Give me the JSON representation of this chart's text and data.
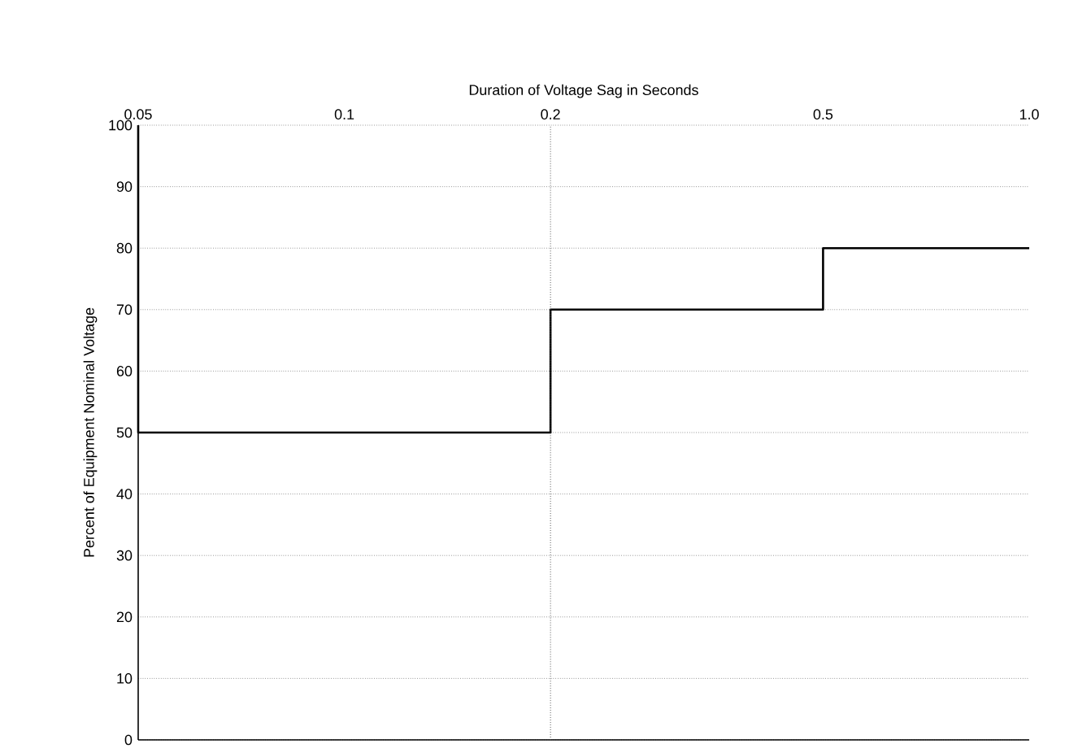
{
  "chart_data": {
    "type": "step",
    "xlabel": "Duration of Voltage Sag in Seconds",
    "ylabel": "Percent of Equipment Nominal Voltage",
    "x": [
      0.05,
      0.05,
      0.2,
      0.5,
      1.0
    ],
    "values": [
      100,
      50,
      70,
      80,
      80
    ],
    "color": "#000000",
    "log": "x",
    "xlim": [
      0.05,
      1.0
    ],
    "xticks": [
      0.05,
      0.1,
      0.2,
      0.5,
      {
        "value": 1.0,
        "label": "1.0"
      }
    ],
    "ylim": [
      0,
      100
    ],
    "yticks": [
      0,
      10,
      20,
      30,
      40,
      50,
      60,
      70,
      80,
      90,
      100
    ],
    "grid": "y",
    "ref_lines": [
      {
        "axis": "x",
        "value": 0.2,
        "label": null,
        "color": "#555555",
        "line_style": "dotted"
      }
    ]
  }
}
